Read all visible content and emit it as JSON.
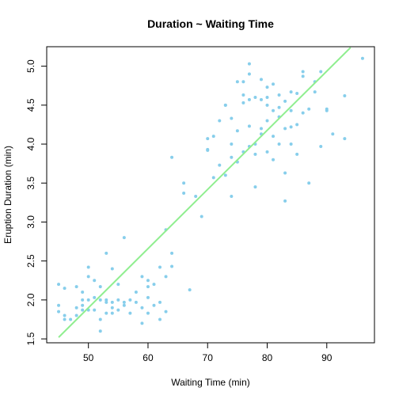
{
  "chart_data": {
    "type": "scatter",
    "title": "Duration ~ Waiting Time",
    "xlabel": "Waiting Time (min)",
    "ylabel": "Eruption Duration (min)",
    "xlim": [
      43,
      98
    ],
    "ylim": [
      1.45,
      5.25
    ],
    "xticks": [
      50,
      60,
      70,
      80,
      90
    ],
    "yticks": [
      1.5,
      2.0,
      2.5,
      3.0,
      3.5,
      4.0,
      4.5,
      5.0
    ],
    "xtick_labels": [
      "50",
      "60",
      "70",
      "80",
      "90"
    ],
    "ytick_labels": [
      "1.5",
      "2.0",
      "2.5",
      "3.0",
      "3.5",
      "4.0",
      "4.5",
      "5.0"
    ],
    "grid": false,
    "point_color": "#87CEEB",
    "line_color": "#90EE90",
    "series": [
      {
        "values": [
          [
            45,
            2.2
          ],
          [
            45,
            1.93
          ],
          [
            45,
            1.85
          ],
          [
            46,
            1.8
          ],
          [
            46,
            1.75
          ],
          [
            46,
            2.15
          ],
          [
            47,
            1.75
          ],
          [
            48,
            1.8
          ],
          [
            48,
            1.9
          ],
          [
            48,
            2.17
          ],
          [
            49,
            1.93
          ],
          [
            49,
            2.0
          ],
          [
            49,
            1.87
          ],
          [
            49,
            2.1
          ],
          [
            50,
            2.3
          ],
          [
            50,
            2.42
          ],
          [
            50,
            2.0
          ],
          [
            50,
            1.87
          ],
          [
            51,
            2.25
          ],
          [
            51,
            2.03
          ],
          [
            51,
            1.87
          ],
          [
            52,
            1.6
          ],
          [
            52,
            1.75
          ],
          [
            52,
            2.0
          ],
          [
            52,
            2.17
          ],
          [
            53,
            1.83
          ],
          [
            53,
            2.6
          ],
          [
            53,
            2.0
          ],
          [
            53,
            1.97
          ],
          [
            54,
            1.83
          ],
          [
            54,
            1.9
          ],
          [
            54,
            2.4
          ],
          [
            54,
            1.97
          ],
          [
            55,
            2.2
          ],
          [
            55,
            2.0
          ],
          [
            55,
            1.87
          ],
          [
            56,
            1.93
          ],
          [
            56,
            2.8
          ],
          [
            56,
            1.97
          ],
          [
            57,
            2.0
          ],
          [
            57,
            1.83
          ],
          [
            58,
            2.1
          ],
          [
            58,
            1.97
          ],
          [
            59,
            1.7
          ],
          [
            59,
            2.3
          ],
          [
            59,
            1.9
          ],
          [
            60,
            2.25
          ],
          [
            60,
            2.17
          ],
          [
            60,
            1.83
          ],
          [
            60,
            2.03
          ],
          [
            61,
            1.93
          ],
          [
            61,
            2.2
          ],
          [
            62,
            2.42
          ],
          [
            62,
            1.75
          ],
          [
            62,
            1.97
          ],
          [
            63,
            2.3
          ],
          [
            63,
            1.85
          ],
          [
            63,
            2.9
          ],
          [
            64,
            2.6
          ],
          [
            64,
            2.43
          ],
          [
            66,
            3.37
          ],
          [
            66,
            3.5
          ],
          [
            67,
            2.13
          ],
          [
            68,
            3.33
          ],
          [
            69,
            3.07
          ],
          [
            70,
            3.93
          ],
          [
            70,
            4.07
          ],
          [
            71,
            3.57
          ],
          [
            71,
            4.1
          ],
          [
            72,
            4.3
          ],
          [
            72,
            3.73
          ],
          [
            73,
            4.5
          ],
          [
            73,
            3.6
          ],
          [
            73,
            4.5
          ],
          [
            74,
            4.33
          ],
          [
            74,
            3.83
          ],
          [
            74,
            4.0
          ],
          [
            75,
            4.8
          ],
          [
            75,
            3.77
          ],
          [
            75,
            4.17
          ],
          [
            76,
            4.53
          ],
          [
            76,
            3.9
          ],
          [
            76,
            4.8
          ],
          [
            77,
            4.57
          ],
          [
            77,
            4.9
          ],
          [
            77,
            4.23
          ],
          [
            77,
            3.97
          ],
          [
            77,
            5.03
          ],
          [
            78,
            4.6
          ],
          [
            78,
            3.87
          ],
          [
            78,
            4.0
          ],
          [
            78,
            3.45
          ],
          [
            79,
            4.83
          ],
          [
            79,
            4.57
          ],
          [
            79,
            4.13
          ],
          [
            80,
            4.3
          ],
          [
            80,
            3.9
          ],
          [
            80,
            4.5
          ],
          [
            80,
            4.73
          ],
          [
            81,
            4.77
          ],
          [
            81,
            4.1
          ],
          [
            81,
            4.43
          ],
          [
            81,
            3.8
          ],
          [
            82,
            4.63
          ],
          [
            82,
            4.35
          ],
          [
            82,
            4.0
          ],
          [
            83,
            4.55
          ],
          [
            83,
            4.2
          ],
          [
            83,
            3.63
          ],
          [
            84,
            4.43
          ],
          [
            84,
            4.67
          ],
          [
            84,
            4.0
          ],
          [
            85,
            4.65
          ],
          [
            85,
            4.25
          ],
          [
            85,
            3.87
          ],
          [
            86,
            4.87
          ],
          [
            86,
            4.93
          ],
          [
            86,
            4.4
          ],
          [
            87,
            4.45
          ],
          [
            87,
            3.5
          ],
          [
            88,
            4.67
          ],
          [
            89,
            4.93
          ],
          [
            89,
            3.97
          ],
          [
            90,
            4.45
          ],
          [
            90,
            4.43
          ],
          [
            91,
            4.13
          ],
          [
            93,
            4.62
          ],
          [
            93,
            4.07
          ],
          [
            96,
            5.1
          ],
          [
            64,
            3.83
          ],
          [
            70,
            3.92
          ],
          [
            74,
            3.33
          ],
          [
            76,
            4.63
          ],
          [
            79,
            4.2
          ],
          [
            82,
            4.47
          ],
          [
            84,
            4.22
          ],
          [
            88,
            4.8
          ],
          [
            80,
            4.6
          ],
          [
            83,
            3.27
          ]
        ]
      }
    ],
    "fit_line": {
      "x": [
        45,
        94
      ],
      "y": [
        1.52,
        5.24
      ]
    }
  }
}
